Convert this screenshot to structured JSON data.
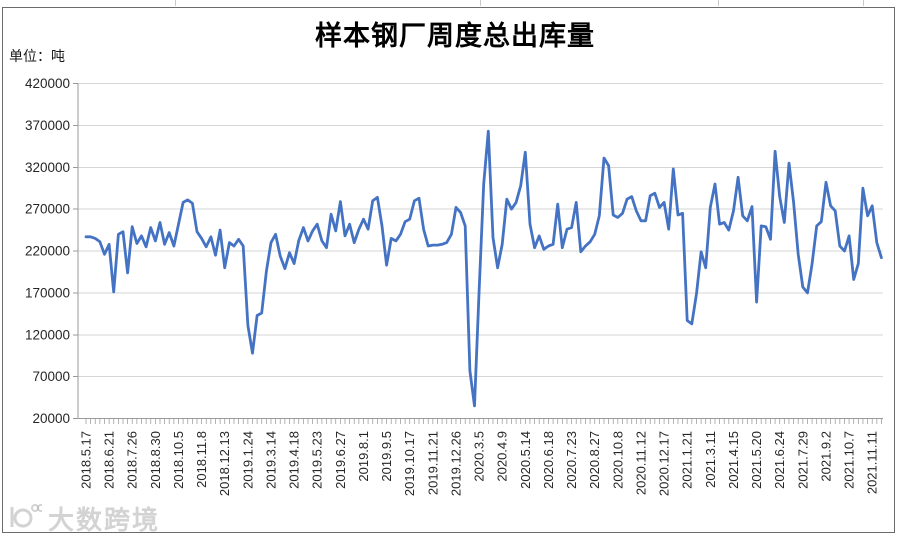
{
  "chart_data": {
    "type": "line",
    "title": "样本钢厂周度总出库量",
    "unit_label": "单位：吨",
    "ylim": [
      20000,
      420000
    ],
    "y_tick_step": 50000,
    "y_ticks": [
      420000,
      370000,
      320000,
      270000,
      220000,
      170000,
      120000,
      70000,
      20000
    ],
    "grid": "horizontal",
    "legend": "none",
    "x_label_rotation": -90,
    "label_interval": 5,
    "x_tick_labels": [
      "2018.5.17",
      "2018.6.21",
      "2018.7.26",
      "2018.8.30",
      "2018.10.5",
      "2018.11.8",
      "2018.12.13",
      "2019.1.24",
      "2019.3.14",
      "2019.4.18",
      "2019.5.23",
      "2019.6.27",
      "2019.8.1",
      "2019.9.5",
      "2019.10.17",
      "2019.11.21",
      "2019.12.26",
      "2020.3.5",
      "2020.4.9",
      "2020.5.14",
      "2020.6.18",
      "2020.7.23",
      "2020.8.27",
      "2020.10.8",
      "2020.11.12",
      "2020.12.17",
      "2021.1.21",
      "2021.3.11",
      "2021.4.15",
      "2021.5.20",
      "2021.6.24",
      "2021.7.29",
      "2021.9.2",
      "2021.10.7",
      "2021.11.11"
    ],
    "series": [
      {
        "name": "周度总出库量",
        "color": "#4573C4",
        "values": [
          237000,
          237000,
          235000,
          231000,
          216000,
          228000,
          171000,
          240000,
          243000,
          194000,
          249000,
          229000,
          238000,
          225000,
          248000,
          232000,
          254000,
          228000,
          242000,
          226000,
          252000,
          278000,
          281000,
          277000,
          243000,
          235000,
          225000,
          237000,
          215000,
          245000,
          200000,
          230000,
          226000,
          234000,
          226000,
          131000,
          98000,
          143000,
          146000,
          196000,
          230000,
          240000,
          214000,
          199000,
          218000,
          205000,
          232000,
          248000,
          232000,
          244000,
          252000,
          232000,
          224000,
          264000,
          244000,
          279000,
          238000,
          252000,
          230000,
          246000,
          258000,
          246000,
          280000,
          284000,
          250000,
          203000,
          235000,
          232000,
          240000,
          255000,
          258000,
          280000,
          283000,
          246000,
          226000,
          227000,
          227000,
          228000,
          230000,
          240000,
          272000,
          266000,
          250000,
          77000,
          35000,
          172000,
          300000,
          363000,
          236000,
          200000,
          228000,
          282000,
          270000,
          278000,
          298000,
          338000,
          252000,
          224000,
          238000,
          222000,
          226000,
          228000,
          276000,
          224000,
          246000,
          248000,
          278000,
          219000,
          226000,
          231000,
          240000,
          262000,
          331000,
          322000,
          263000,
          260000,
          265000,
          282000,
          285000,
          268000,
          256000,
          256000,
          286000,
          289000,
          272000,
          278000,
          246000,
          318000,
          263000,
          265000,
          137000,
          133000,
          169000,
          219000,
          200000,
          272000,
          300000,
          252000,
          254000,
          245000,
          268000,
          308000,
          262000,
          256000,
          273000,
          159000,
          250000,
          249000,
          234000,
          339000,
          285000,
          254000,
          325000,
          278000,
          216000,
          177000,
          170000,
          205000,
          250000,
          255000,
          302000,
          274000,
          268000,
          226000,
          220000,
          238000,
          186000,
          205000,
          295000,
          262000,
          274000,
          230000,
          212000
        ]
      }
    ]
  },
  "watermark": {
    "text": "大数跨境"
  },
  "colors": {
    "line": "#4573C4",
    "gridline": "#d6d6d6",
    "axis": "#9a9a9a",
    "tick_label": "#262626",
    "frame_border": "#6b6b6b"
  }
}
